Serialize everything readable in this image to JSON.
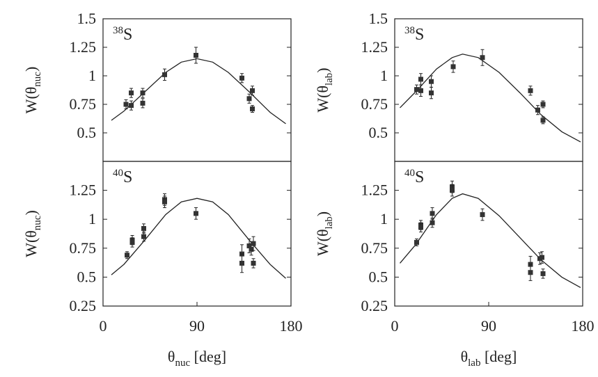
{
  "chart_data": [
    {
      "type": "scatter",
      "label": [
        "38",
        "S"
      ],
      "ylabel": [
        "W(θ",
        "nuc",
        ")"
      ],
      "xlim": [
        0,
        180
      ],
      "ylim": [
        0.25,
        1.5
      ],
      "yticks": [
        0.5,
        0.75,
        1,
        1.25,
        1.5
      ],
      "color": "#333333",
      "points": {
        "x": [
          22,
          27,
          27,
          38,
          38,
          59,
          89,
          133,
          140,
          143,
          143
        ],
        "y": [
          0.75,
          0.85,
          0.74,
          0.85,
          0.76,
          1.01,
          1.18,
          0.98,
          0.8,
          0.87,
          0.71
        ],
        "err": [
          0.04,
          0.04,
          0.04,
          0.04,
          0.04,
          0.05,
          0.07,
          0.04,
          0.04,
          0.04,
          0.03
        ]
      },
      "curve": {
        "x": [
          8,
          20,
          40,
          60,
          75,
          90,
          105,
          120,
          140,
          160,
          175
        ],
        "y": [
          0.61,
          0.69,
          0.86,
          1.03,
          1.12,
          1.15,
          1.12,
          1.03,
          0.86,
          0.68,
          0.58
        ]
      }
    },
    {
      "type": "scatter",
      "label": [
        "38",
        "S"
      ],
      "ylabel": [
        "W(θ",
        "lab",
        ")"
      ],
      "xlim": [
        0,
        180
      ],
      "ylim": [
        0.25,
        1.5
      ],
      "yticks": [
        0.5,
        0.75,
        1,
        1.25,
        1.5
      ],
      "color": "#333333",
      "points": {
        "x": [
          21,
          25,
          25,
          35,
          35,
          56,
          84,
          130,
          137,
          142,
          142
        ],
        "y": [
          0.88,
          0.87,
          0.97,
          0.95,
          0.85,
          1.08,
          1.16,
          0.87,
          0.7,
          0.75,
          0.61
        ],
        "err": [
          0.04,
          0.05,
          0.05,
          0.05,
          0.05,
          0.05,
          0.07,
          0.04,
          0.04,
          0.03,
          0.03
        ]
      },
      "curve": {
        "x": [
          5,
          20,
          40,
          55,
          65,
          80,
          100,
          120,
          140,
          160,
          178
        ],
        "y": [
          0.72,
          0.86,
          1.06,
          1.16,
          1.19,
          1.16,
          1.03,
          0.85,
          0.66,
          0.51,
          0.42
        ]
      }
    },
    {
      "type": "scatter",
      "label": [
        "40",
        "S"
      ],
      "ylabel": [
        "W(θ",
        "nuc",
        ")"
      ],
      "xlabel": [
        "θ",
        "nuc",
        " [deg]"
      ],
      "xlim": [
        0,
        180
      ],
      "xticks": [
        0,
        90,
        180
      ],
      "ylim": [
        0.25,
        1.5
      ],
      "yticks": [
        0.25,
        0.5,
        0.75,
        1,
        1.25
      ],
      "color": "#333333",
      "points": {
        "x": [
          23,
          28,
          28,
          39,
          39,
          59,
          59,
          89,
          133,
          133,
          140,
          142,
          144,
          144
        ],
        "y": [
          0.69,
          0.82,
          0.8,
          0.92,
          0.85,
          1.17,
          1.15,
          1.05,
          0.7,
          0.62,
          0.77,
          0.74,
          0.79,
          0.62
        ],
        "err": [
          0.03,
          0.04,
          0.04,
          0.04,
          0.04,
          0.05,
          0.05,
          0.05,
          0.08,
          0.08,
          0.06,
          0.05,
          0.06,
          0.04
        ]
      },
      "curve": {
        "x": [
          8,
          20,
          40,
          60,
          75,
          90,
          105,
          120,
          140,
          160,
          175
        ],
        "y": [
          0.52,
          0.61,
          0.82,
          1.04,
          1.15,
          1.18,
          1.15,
          1.04,
          0.82,
          0.61,
          0.49
        ]
      }
    },
    {
      "type": "scatter",
      "label": [
        "40",
        "S"
      ],
      "ylabel": [
        "W(θ",
        "lab",
        ")"
      ],
      "xlabel": [
        "θ",
        "lab",
        " [deg]"
      ],
      "xlim": [
        0,
        180
      ],
      "xticks": [
        0,
        90,
        180
      ],
      "ylim": [
        0.25,
        1.5
      ],
      "yticks": [
        0.25,
        0.5,
        0.75,
        1,
        1.25
      ],
      "color": "#333333",
      "points": {
        "x": [
          21,
          25,
          25,
          36,
          36,
          55,
          55,
          84,
          130,
          130,
          139,
          141,
          142
        ],
        "y": [
          0.8,
          0.95,
          0.93,
          1.05,
          0.97,
          1.28,
          1.25,
          1.04,
          0.61,
          0.54,
          0.66,
          0.67,
          0.53
        ],
        "err": [
          0.03,
          0.04,
          0.04,
          0.05,
          0.04,
          0.05,
          0.05,
          0.05,
          0.07,
          0.07,
          0.05,
          0.05,
          0.04
        ]
      },
      "curve": {
        "x": [
          5,
          20,
          40,
          55,
          65,
          80,
          100,
          120,
          140,
          160,
          178
        ],
        "y": [
          0.62,
          0.78,
          1.04,
          1.18,
          1.22,
          1.18,
          1.03,
          0.84,
          0.65,
          0.5,
          0.41
        ]
      }
    }
  ]
}
